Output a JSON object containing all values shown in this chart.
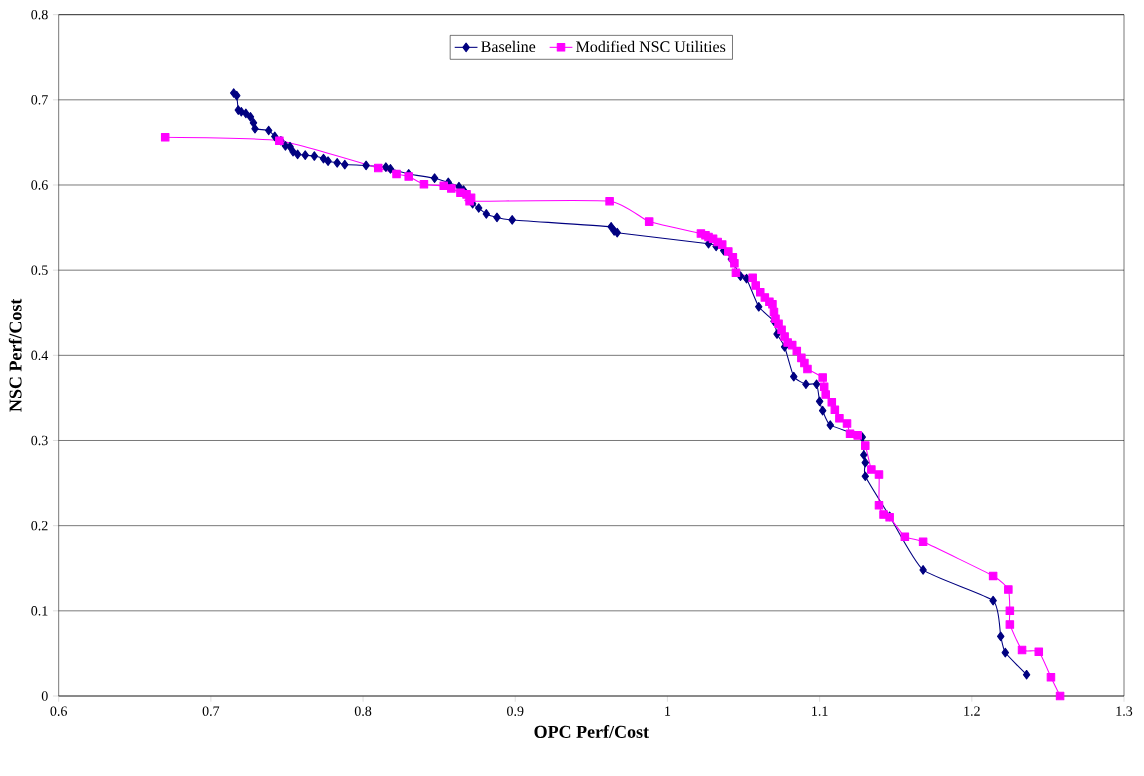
{
  "chart_data": {
    "type": "line",
    "xlabel": "OPC Perf/Cost",
    "ylabel": "NSC Perf/Cost",
    "xlim": [
      0.6,
      1.3
    ],
    "xticks": [
      0.6,
      0.7,
      0.8,
      0.9,
      1,
      1.1,
      1.2,
      1.3
    ],
    "ylim": [
      0,
      0.8
    ],
    "yticks": [
      0,
      0.1,
      0.2,
      0.3,
      0.4,
      0.5,
      0.6,
      0.7,
      0.8
    ],
    "grid": "y",
    "legend": "top",
    "series": [
      {
        "name": "Baseline",
        "color": "#000080",
        "marker": "diamond",
        "x": [
          0.715,
          0.717,
          0.718,
          0.72,
          0.723,
          0.726,
          0.728,
          0.729,
          0.738,
          0.742,
          0.746,
          0.749,
          0.752,
          0.754,
          0.757,
          0.762,
          0.768,
          0.774,
          0.777,
          0.783,
          0.788,
          0.802,
          0.815,
          0.818,
          0.83,
          0.847,
          0.856,
          0.863,
          0.866,
          0.869,
          0.872,
          0.876,
          0.881,
          0.888,
          0.898,
          0.963,
          0.965,
          0.967,
          1.022,
          1.027,
          1.032,
          1.037,
          1.042,
          1.045,
          1.048,
          1.052,
          1.06,
          1.07,
          1.072,
          1.077,
          1.083,
          1.091,
          1.098,
          1.1,
          1.102,
          1.107,
          1.128,
          1.129,
          1.13,
          1.13,
          1.146,
          1.168,
          1.214,
          1.219,
          1.222,
          1.236
        ],
        "values": [
          0.708,
          0.705,
          0.688,
          0.686,
          0.684,
          0.68,
          0.673,
          0.666,
          0.664,
          0.657,
          0.652,
          0.646,
          0.645,
          0.639,
          0.636,
          0.635,
          0.634,
          0.631,
          0.628,
          0.626,
          0.624,
          0.623,
          0.621,
          0.619,
          0.613,
          0.608,
          0.603,
          0.598,
          0.594,
          null,
          0.578,
          0.573,
          0.566,
          0.562,
          0.559,
          0.551,
          0.546,
          0.544,
          null,
          0.531,
          0.528,
          0.523,
          0.513,
          null,
          0.493,
          0.49,
          0.457,
          0.44,
          0.425,
          0.41,
          0.375,
          0.366,
          0.366,
          0.346,
          0.335,
          0.318,
          0.304,
          0.283,
          0.274,
          0.258,
          0.211,
          0.148,
          0.112,
          0.07,
          0.051,
          0.025
        ]
      },
      {
        "name": "Modified NSC Utilities",
        "color": "#ff00ff",
        "marker": "square",
        "x": [
          0.67,
          0.745,
          0.81,
          0.822,
          0.83,
          0.84,
          0.853,
          0.858,
          0.864,
          0.868,
          0.871,
          0.87,
          0.962,
          0.988,
          1.022,
          1.025,
          1.027,
          1.03,
          1.033,
          1.036,
          1.04,
          1.043,
          1.044,
          1.045,
          1.056,
          1.058,
          1.061,
          1.064,
          1.067,
          1.069,
          1.07,
          1.071,
          1.073,
          1.075,
          1.077,
          1.079,
          1.082,
          1.085,
          1.088,
          1.09,
          1.092,
          1.102,
          1.103,
          1.104,
          1.108,
          1.11,
          1.113,
          1.118,
          1.12,
          1.125,
          1.13,
          1.134,
          1.139,
          1.139,
          1.142,
          1.146,
          1.156,
          1.168,
          1.214,
          1.224,
          1.225,
          1.225,
          1.233,
          1.244,
          1.252,
          1.258
        ],
        "values": [
          0.656,
          0.652,
          0.62,
          0.613,
          0.61,
          0.601,
          0.599,
          0.596,
          0.591,
          0.589,
          0.585,
          0.581,
          0.581,
          0.557,
          0.543,
          0.541,
          0.539,
          0.537,
          0.533,
          0.53,
          0.522,
          0.515,
          0.508,
          0.497,
          0.491,
          0.482,
          0.474,
          0.468,
          0.463,
          0.46,
          0.451,
          0.443,
          0.437,
          0.43,
          0.422,
          0.415,
          0.412,
          0.405,
          0.397,
          0.391,
          0.384,
          0.374,
          0.363,
          0.354,
          0.345,
          0.336,
          0.326,
          0.32,
          0.308,
          0.306,
          0.294,
          0.266,
          0.26,
          0.224,
          0.213,
          0.21,
          0.187,
          0.181,
          0.141,
          0.125,
          0.1,
          0.084,
          0.054,
          0.052,
          0.022,
          0.0
        ]
      }
    ]
  }
}
